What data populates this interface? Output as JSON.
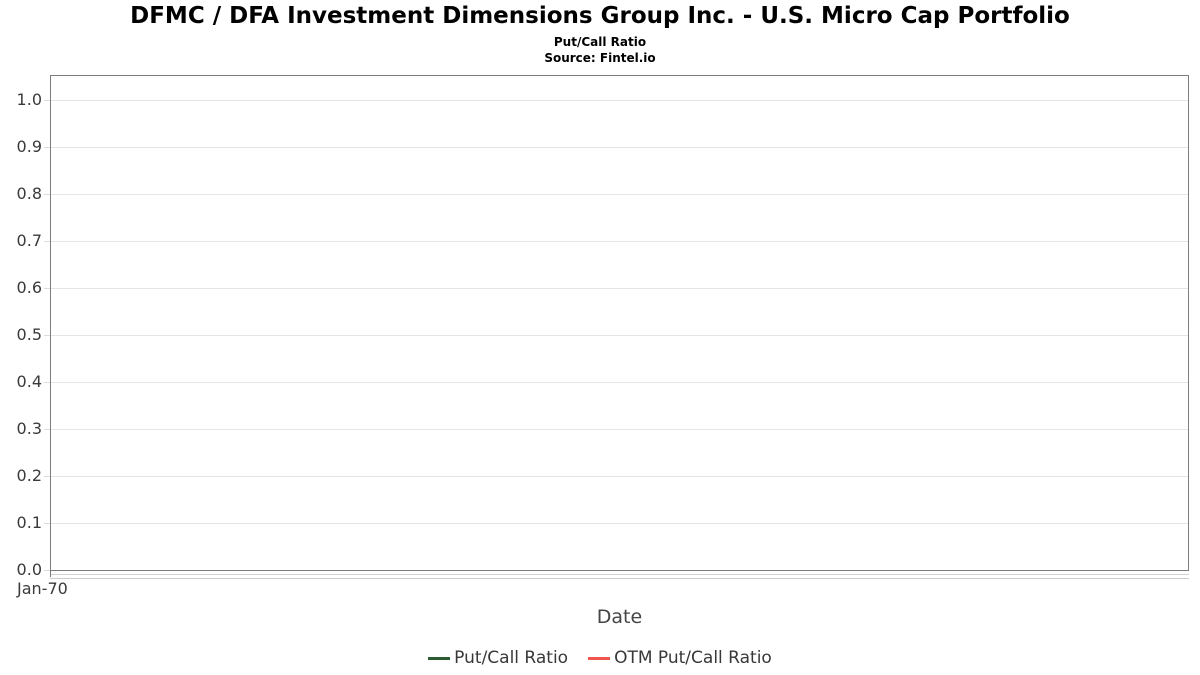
{
  "chart_data": {
    "type": "line",
    "title": "DFMC / DFA Investment Dimensions Group Inc. - U.S. Micro Cap Portfolio",
    "subtitle": "Put/Call Ratio",
    "source_note": "Source: Fintel.io",
    "xlabel": "Date",
    "ylabel": "",
    "ylim": [
      0.0,
      1.05
    ],
    "yticks": [
      0,
      0.1,
      0.2,
      0.3,
      0.4,
      0.5,
      0.6,
      0.7,
      0.8,
      0.9,
      1.0
    ],
    "ytick_labels": [
      "0.0",
      "0.1",
      "0.2",
      "0.3",
      "0.4",
      "0.5",
      "0.6",
      "0.7",
      "0.8",
      "0.9",
      "1.0"
    ],
    "xtick_labels": [
      "Jan-70"
    ],
    "grid": "horizontal",
    "legend_position": "bottom-center",
    "series": [
      {
        "name": "Put/Call Ratio",
        "color": "#2b5c31",
        "x": [],
        "values": []
      },
      {
        "name": "OTM Put/Call Ratio",
        "color": "#f0564d",
        "x": [],
        "values": []
      }
    ]
  },
  "colors": {
    "plot_border": "#7c7c7c",
    "gridline": "#e5e5e5",
    "tick": "#dcdcdc",
    "axis_text": "#3a3a3a",
    "title_text": "#000000",
    "legend_text": "#383838",
    "background": "#ffffff"
  }
}
